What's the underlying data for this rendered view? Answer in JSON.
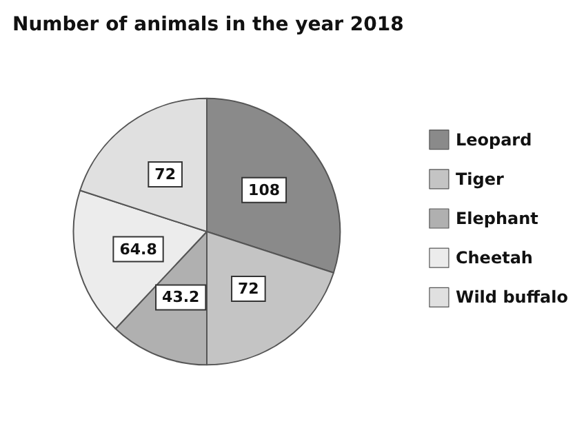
{
  "chart_data": {
    "type": "pie",
    "title": "Number of animals in the year 2018",
    "categories": [
      "Leopard",
      "Tiger",
      "Elephant",
      "Cheetah",
      "Wild buffalo"
    ],
    "values": [
      108,
      72,
      43.2,
      64.8,
      72
    ],
    "colors": [
      "#8a8a8a",
      "#c4c4c4",
      "#b0b0b0",
      "#ececec",
      "#e0e0e0"
    ],
    "data_labels": true,
    "legend": "right"
  }
}
